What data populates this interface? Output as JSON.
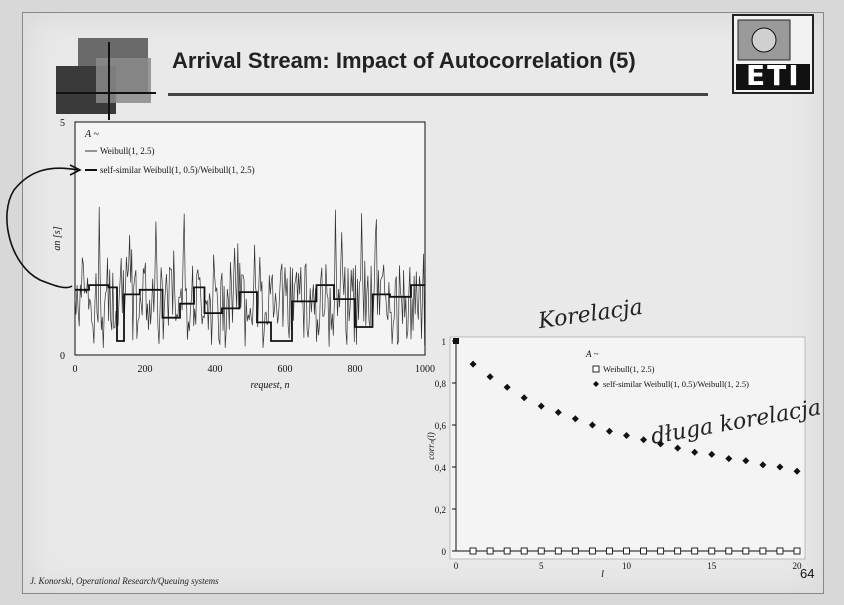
{
  "slide": {
    "title": "Arrival Stream: Impact of Autocorrelation (5)",
    "footer": "J. Konorski, Operational Research/Queuing systems",
    "page_number": "64",
    "logo_text": "ETI",
    "handwritten_notes": [
      "Korelacja",
      "długa korelacja"
    ]
  },
  "chart_data": [
    {
      "type": "line",
      "title": "",
      "series_label_prefix": "A ~",
      "xlabel": "request, n",
      "ylabel": "an [s]",
      "xlim": [
        0,
        1000
      ],
      "ylim": [
        0,
        5
      ],
      "x_ticks": [
        "0",
        "200",
        "400",
        "600",
        "800",
        "1000"
      ],
      "y_ticks": [
        "0",
        "5"
      ],
      "legend_placement": "top-left",
      "series": [
        {
          "name": "Weibull(1, 2.5)",
          "style": "thin-noisy",
          "mean": 0.9,
          "spread": 2.2
        },
        {
          "name": "self-similar Weibull(1, 0.5)/Weibull(1, 2.5)",
          "style": "step-bursty",
          "steps": [
            [
              0,
              1.4
            ],
            [
              40,
              1.4
            ],
            [
              40,
              1.5
            ],
            [
              95,
              1.5
            ],
            [
              95,
              1.45
            ],
            [
              120,
              1.45
            ],
            [
              120,
              0.3
            ],
            [
              140,
              0.3
            ],
            [
              140,
              1.3
            ],
            [
              185,
              1.3
            ],
            [
              185,
              1.4
            ],
            [
              250,
              1.4
            ],
            [
              250,
              0.8
            ],
            [
              300,
              0.8
            ],
            [
              300,
              1.1
            ],
            [
              340,
              1.1
            ],
            [
              340,
              1.45
            ],
            [
              370,
              1.45
            ],
            [
              370,
              0.9
            ],
            [
              420,
              0.9
            ],
            [
              420,
              1.0
            ],
            [
              470,
              1.0
            ],
            [
              470,
              1.35
            ],
            [
              520,
              1.35
            ],
            [
              520,
              0.7
            ],
            [
              560,
              0.7
            ],
            [
              560,
              0.3
            ],
            [
              620,
              0.3
            ],
            [
              620,
              1.15
            ],
            [
              690,
              1.15
            ],
            [
              690,
              1.5
            ],
            [
              740,
              1.5
            ],
            [
              740,
              1.2
            ],
            [
              800,
              1.2
            ],
            [
              800,
              0.6
            ],
            [
              850,
              0.6
            ],
            [
              850,
              1.3
            ],
            [
              900,
              1.3
            ],
            [
              900,
              1.25
            ],
            [
              960,
              1.25
            ],
            [
              960,
              1.5
            ],
            [
              1000,
              1.5
            ]
          ]
        }
      ]
    },
    {
      "type": "scatter",
      "title": "",
      "series_label_prefix": "A ~",
      "xlabel": "l",
      "ylabel": "corrₙ(l)",
      "xlim": [
        0,
        20
      ],
      "ylim": [
        0,
        1
      ],
      "x_ticks": [
        "0",
        "5",
        "10",
        "15",
        "20"
      ],
      "y_ticks": [
        "0",
        "0,2",
        "0,4",
        "0,6",
        "0,8",
        "1"
      ],
      "legend_placement": "top-right",
      "series": [
        {
          "name": "Weibull(1, 2.5)",
          "marker": "open-square",
          "x": [
            0,
            1,
            2,
            3,
            4,
            5,
            6,
            7,
            8,
            9,
            10,
            11,
            12,
            13,
            14,
            15,
            16,
            17,
            18,
            19,
            20
          ],
          "y": [
            1,
            0,
            0,
            0,
            0,
            0,
            0,
            0,
            0,
            0,
            0,
            0,
            0,
            0,
            0,
            0,
            0,
            0,
            0,
            0,
            0
          ]
        },
        {
          "name": "self-similar Weibull(1, 0.5)/Weibull(1, 2.5)",
          "marker": "filled-diamond",
          "x": [
            1,
            2,
            3,
            4,
            5,
            6,
            7,
            8,
            9,
            10,
            11,
            12,
            13,
            14,
            15,
            16,
            17,
            18,
            19,
            20
          ],
          "y": [
            0.89,
            0.83,
            0.78,
            0.73,
            0.69,
            0.66,
            0.63,
            0.6,
            0.57,
            0.55,
            0.53,
            0.51,
            0.49,
            0.47,
            0.46,
            0.44,
            0.43,
            0.41,
            0.4,
            0.38
          ]
        }
      ]
    }
  ]
}
